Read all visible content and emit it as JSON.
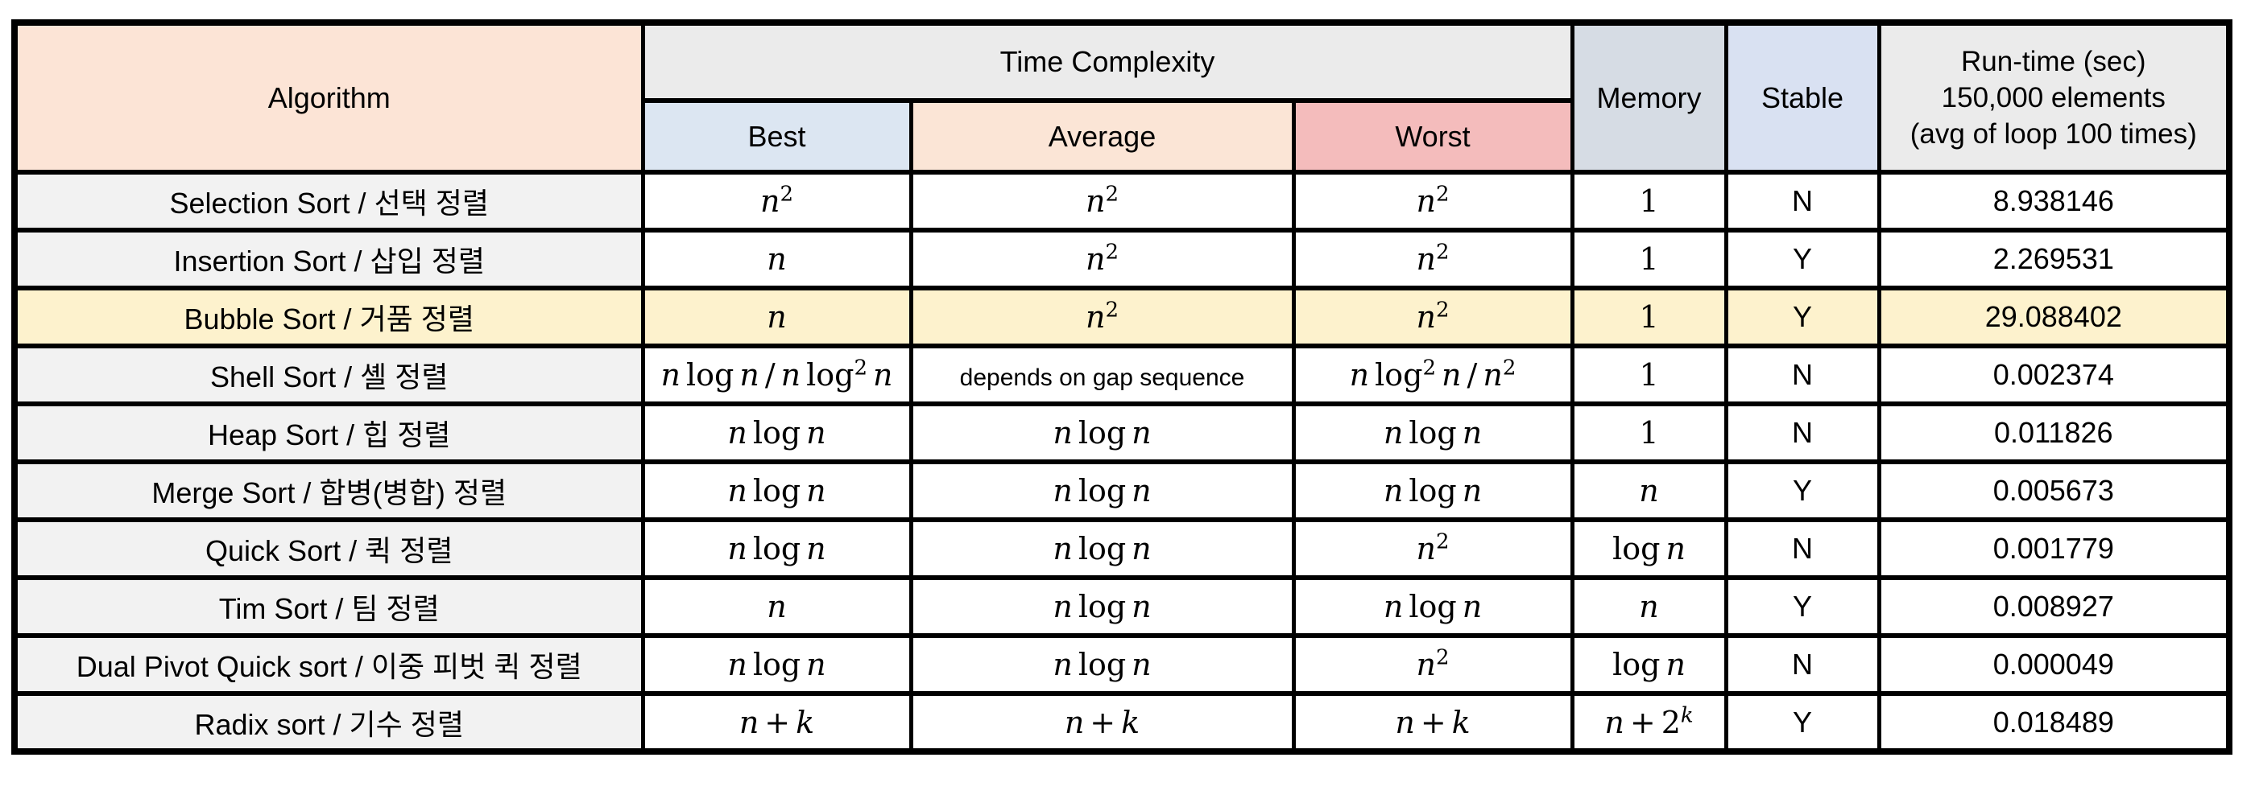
{
  "chart_data": {
    "type": "table",
    "header": {
      "algorithm": "Algorithm",
      "time_complexity": "Time Complexity",
      "best": "Best",
      "average": "Average",
      "worst": "Worst",
      "memory": "Memory",
      "stable": "Stable",
      "runtime_line1": "Run-time (sec)",
      "runtime_line2": "150,000 elements",
      "runtime_line3": "(avg of loop 100 times)"
    },
    "rows": [
      {
        "algorithm": "Selection Sort / 선택 정렬",
        "best": "n^2",
        "average": "n^2",
        "worst": "n^2",
        "memory": "1",
        "stable": "N",
        "runtime": "8.938146",
        "highlighted": false
      },
      {
        "algorithm": "Insertion Sort / 삽입 정렬",
        "best": "n",
        "average": "n^2",
        "worst": "n^2",
        "memory": "1",
        "stable": "Y",
        "runtime": "2.269531",
        "highlighted": false
      },
      {
        "algorithm": "Bubble Sort / 거품 정렬",
        "best": "n",
        "average": "n^2",
        "worst": "n^2",
        "memory": "1",
        "stable": "Y",
        "runtime": "29.088402",
        "highlighted": true
      },
      {
        "algorithm": "Shell Sort / 셸 정렬",
        "best": "n log n / n log^2 n",
        "average": {
          "plain": "depends on gap sequence"
        },
        "worst": "n log^2 n / n^2",
        "memory": "1",
        "stable": "N",
        "runtime": "0.002374",
        "highlighted": false
      },
      {
        "algorithm": "Heap Sort / 힙 정렬",
        "best": "n log n",
        "average": "n log n",
        "worst": "n log n",
        "memory": "1",
        "stable": "N",
        "runtime": "0.011826",
        "highlighted": false
      },
      {
        "algorithm": "Merge Sort / 합병(병합) 정렬",
        "best": "n log n",
        "average": "n log n",
        "worst": "n log n",
        "memory": "n",
        "stable": "Y",
        "runtime": "0.005673",
        "highlighted": false
      },
      {
        "algorithm": "Quick Sort / 퀵 정렬",
        "best": "n log n",
        "average": "n log n",
        "worst": "n^2",
        "memory": "log n",
        "stable": "N",
        "runtime": "0.001779",
        "highlighted": false
      },
      {
        "algorithm": "Tim Sort / 팀 정렬",
        "best": "n",
        "average": "n log n",
        "worst": "n log n",
        "memory": "n",
        "stable": "Y",
        "runtime": "0.008927",
        "highlighted": false
      },
      {
        "algorithm": "Dual Pivot Quick sort / 이중 피벗 퀵 정렬",
        "best": "n log n",
        "average": "n log n",
        "worst": "n^2",
        "memory": "log n",
        "stable": "N",
        "runtime": "0.000049",
        "highlighted": false
      },
      {
        "algorithm": "Radix sort / 기수 정렬",
        "best": "n + k",
        "average": "n + k",
        "worst": "n + k",
        "memory": "n + 2^k",
        "stable": "Y",
        "runtime": "0.018489",
        "highlighted": false
      }
    ],
    "colors": {
      "header_algorithm_bg": "#fce4d6",
      "header_time_complexity_bg": "#ebebeb",
      "header_best_bg": "#dce6f2",
      "header_average_bg": "#fbe5d6",
      "header_worst_bg": "#f4bcbc",
      "header_memory_bg": "#d6dce4",
      "header_stable_bg": "#d9e1f2",
      "header_runtime_bg": "#ebebeb",
      "row_label_bg": "#f2f2f2",
      "highlight_row_bg": "#fdf2cd",
      "border": "#000000"
    }
  }
}
